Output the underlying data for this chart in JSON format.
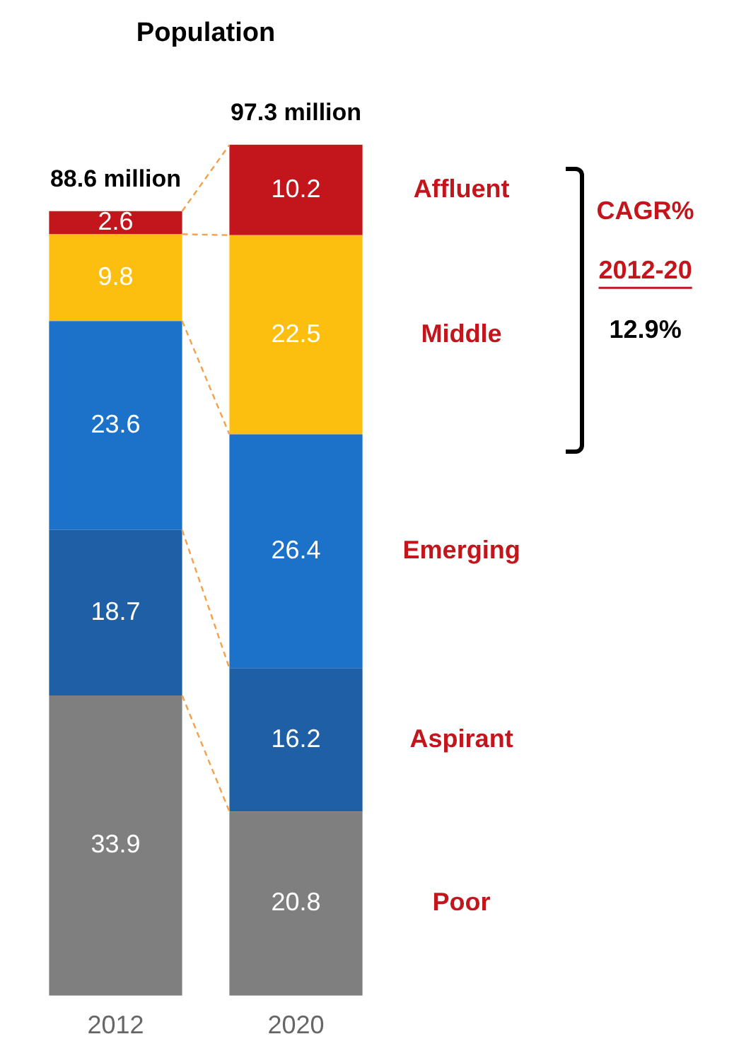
{
  "chart_data": {
    "type": "bar",
    "stacked": true,
    "title": "Population",
    "categories": [
      "2012",
      "2020"
    ],
    "series": [
      {
        "name": "Poor",
        "color": "#7f7f7f",
        "values": [
          33.9,
          20.8
        ]
      },
      {
        "name": "Aspirant",
        "color": "#1f5fa6",
        "values": [
          18.7,
          16.2
        ]
      },
      {
        "name": "Emerging",
        "color": "#1b72c8",
        "values": [
          23.6,
          26.4
        ]
      },
      {
        "name": "Middle",
        "color": "#fdbf0f",
        "values": [
          9.8,
          22.5
        ]
      },
      {
        "name": "Affluent",
        "color": "#c3161c",
        "values": [
          2.6,
          10.2
        ]
      }
    ],
    "data_labels": true,
    "legend": false,
    "annotations": [
      {
        "text": "88.6 million",
        "x": "2012",
        "y": 88.6
      },
      {
        "text": "97.3 million",
        "x": "2020",
        "y": 96.1
      },
      "CAGR%",
      "2012-20",
      "12.9%"
    ]
  }
}
